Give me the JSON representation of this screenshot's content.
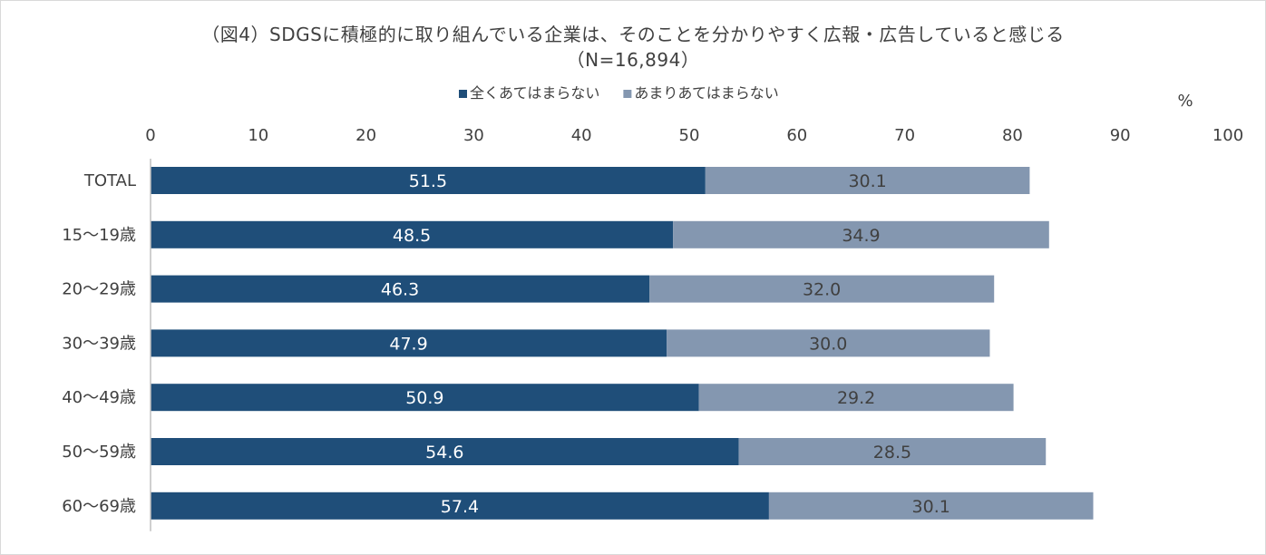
{
  "chart_data": {
    "type": "bar",
    "orientation": "horizontal",
    "stacked": true,
    "title_line1": "（図4）SDGSに積極的に取り組んでいる企業は、そのことを分かりやすく広報・広告していると感じる",
    "title_line2": "（N=16,894）",
    "unit_label": "%",
    "xlim": [
      0,
      100
    ],
    "xticks": [
      0,
      10,
      20,
      30,
      40,
      50,
      60,
      70,
      80,
      90,
      100
    ],
    "categories": [
      "TOTAL",
      "15〜19歳",
      "20〜29歳",
      "30〜39歳",
      "40〜49歳",
      "50〜59歳",
      "60〜69歳"
    ],
    "series": [
      {
        "name": "全くあてはまらない",
        "color": "#1f4e79",
        "label_color": "#ffffff",
        "values": [
          51.5,
          48.5,
          46.3,
          47.9,
          50.9,
          54.6,
          57.4
        ]
      },
      {
        "name": "あまりあてはまらない",
        "color": "#8497b0",
        "label_color": "#404040",
        "values": [
          30.1,
          34.9,
          32.0,
          30.0,
          29.2,
          28.5,
          30.1
        ]
      }
    ],
    "legend_position": "top"
  }
}
